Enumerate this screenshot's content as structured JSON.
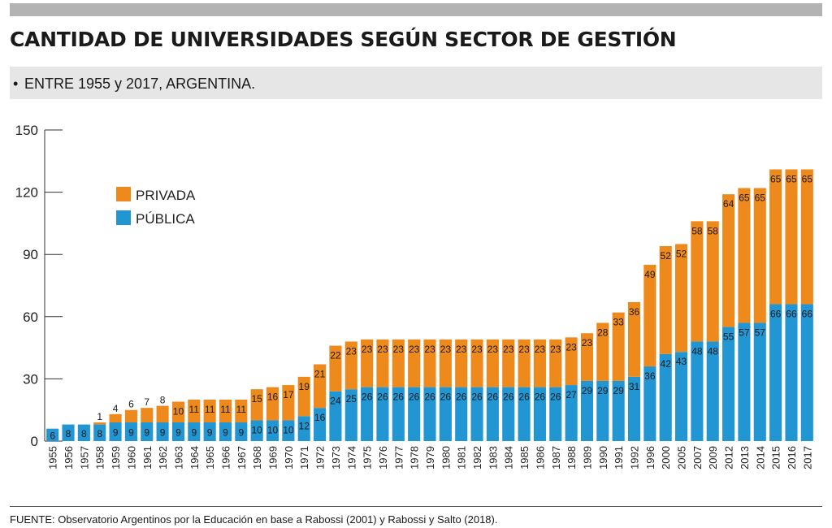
{
  "title": "CANTIDAD DE UNIVERSIDADES SEGÚN SECTOR DE GESTIÓN",
  "subtitle": "ENTRE 1955 y 2017, ARGENTINA.",
  "source": "FUENTE: Observatorio Argentinos por la Educación en base a Rabossi (2001) y Rabossi y Salto (2018).",
  "colors": {
    "privada": "#ee8a1c",
    "publica": "#2196d3"
  },
  "chart_data": {
    "type": "bar",
    "stacked": true,
    "title": "CANTIDAD DE UNIVERSIDADES SEGÚN SECTOR DE GESTIÓN",
    "xlabel": "",
    "ylabel": "",
    "ylim": [
      0,
      150
    ],
    "yticks": [
      0,
      30,
      60,
      90,
      120,
      150
    ],
    "legend_position": "top-left",
    "grid": false,
    "categories": [
      "1955",
      "1956",
      "1957",
      "1958",
      "1959",
      "1960",
      "1961",
      "1962",
      "1963",
      "1964",
      "1965",
      "1966",
      "1967",
      "1968",
      "1969",
      "1970",
      "1971",
      "1972",
      "1973",
      "1974",
      "1975",
      "1976",
      "1977",
      "1978",
      "1979",
      "1980",
      "1981",
      "1982",
      "1983",
      "1984",
      "1985",
      "1986",
      "1987",
      "1988",
      "1989",
      "1990",
      "1991",
      "1992",
      "1996",
      "2000",
      "2005",
      "2007",
      "2009",
      "2012",
      "2013",
      "2014",
      "2015",
      "2016",
      "2017"
    ],
    "series": [
      {
        "name": "PÚBLICA",
        "color": "#2196d3",
        "values": [
          6,
          8,
          8,
          8,
          9,
          9,
          9,
          9,
          9,
          9,
          9,
          9,
          9,
          10,
          10,
          10,
          12,
          16,
          24,
          25,
          26,
          26,
          26,
          26,
          26,
          26,
          26,
          26,
          26,
          26,
          26,
          26,
          26,
          27,
          29,
          29,
          29,
          31,
          36,
          42,
          43,
          48,
          48,
          55,
          57,
          57,
          66,
          66,
          66
        ]
      },
      {
        "name": "PRIVADA",
        "color": "#ee8a1c",
        "values": [
          0,
          0,
          0,
          1,
          4,
          6,
          7,
          8,
          10,
          11,
          11,
          11,
          11,
          15,
          16,
          17,
          19,
          21,
          22,
          23,
          23,
          23,
          23,
          23,
          23,
          23,
          23,
          23,
          23,
          23,
          23,
          23,
          23,
          23,
          23,
          28,
          33,
          36,
          49,
          52,
          52,
          58,
          58,
          64,
          65,
          65,
          65,
          65,
          65
        ]
      }
    ]
  }
}
